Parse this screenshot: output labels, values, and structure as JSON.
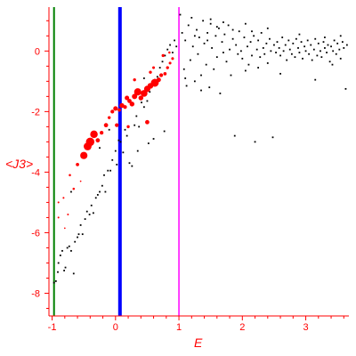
{
  "chart_data": {
    "type": "scatter",
    "title": "",
    "xlabel": "E",
    "ylabel": "<J3>",
    "xlim": [
      -1.05,
      3.68
    ],
    "ylim": [
      -8.75,
      1.45
    ],
    "x_ticks": [
      -1,
      0,
      1,
      2,
      3
    ],
    "x_tick_labels": [
      "-1",
      "0",
      "1",
      "2",
      "3"
    ],
    "y_ticks": [
      0,
      -2,
      -4,
      -6,
      -8
    ],
    "y_tick_labels": [
      "0",
      "-2",
      "-4",
      "-6",
      "-8"
    ],
    "grid": false,
    "legend": "none",
    "colors": {
      "axis": "#ff0000",
      "tick_labels": "#ff0000",
      "small_points": "#000000",
      "large_points": "#ff0000",
      "line_green": "#008000",
      "line_blue": "#0000ff",
      "line_magenta": "#ff00ff"
    },
    "vertical_lines": [
      {
        "x": -0.97,
        "color": "#008000"
      },
      {
        "x": 0.07,
        "color": "#0000ff"
      },
      {
        "x": 1.0,
        "color": "#ff00ff"
      }
    ],
    "series": [
      {
        "marker": "dot",
        "color": "#000000",
        "points": [
          [
            -0.97,
            -7.65
          ],
          [
            -0.94,
            -7.6
          ],
          [
            -0.91,
            -7.3
          ],
          [
            -0.9,
            -7.0
          ],
          [
            -0.87,
            -6.75
          ],
          [
            -0.84,
            -6.6
          ],
          [
            -0.81,
            -7.25
          ],
          [
            -0.79,
            -7.15
          ],
          [
            -0.76,
            -6.5
          ],
          [
            -0.73,
            -6.45
          ],
          [
            -0.7,
            -6.6
          ],
          [
            -0.66,
            -7.35
          ],
          [
            -0.64,
            -6.3
          ],
          [
            -0.6,
            -6.15
          ],
          [
            -0.58,
            -6.05
          ],
          [
            -0.55,
            -5.75
          ],
          [
            -0.52,
            -6.05
          ],
          [
            -0.48,
            -5.55
          ],
          [
            -0.45,
            -5.3
          ],
          [
            -0.41,
            -5.4
          ],
          [
            -0.38,
            -5.1
          ],
          [
            -0.35,
            -5.35
          ],
          [
            -0.31,
            -4.85
          ],
          [
            -0.28,
            -4.75
          ],
          [
            -0.25,
            -4.65
          ],
          [
            -0.21,
            -4.45
          ],
          [
            -0.18,
            -4.1
          ],
          [
            -0.16,
            -4.65
          ],
          [
            -0.12,
            -3.95
          ],
          [
            -0.08,
            -3.95
          ],
          [
            -0.05,
            -3.6
          ],
          [
            0.0,
            -3.3
          ],
          [
            0.02,
            -3.75
          ],
          [
            0.05,
            -2.95
          ],
          [
            0.08,
            -3.0
          ],
          [
            0.12,
            -3.35
          ],
          [
            0.15,
            -2.6
          ],
          [
            0.18,
            -2.8
          ],
          [
            0.22,
            -3.7
          ],
          [
            0.26,
            -3.8
          ],
          [
            0.3,
            -2.45
          ],
          [
            0.33,
            -2.15
          ],
          [
            0.37,
            -2.5
          ],
          [
            0.41,
            -1.7
          ],
          [
            0.45,
            -1.85
          ],
          [
            0.5,
            -1.65
          ],
          [
            0.54,
            -1.35
          ],
          [
            0.58,
            -1.05
          ],
          [
            0.62,
            -0.95
          ],
          [
            0.66,
            -0.85
          ],
          [
            0.7,
            -0.55
          ],
          [
            0.74,
            -0.35
          ],
          [
            0.78,
            -0.15
          ],
          [
            0.82,
            0.05
          ],
          [
            0.86,
            0.2
          ],
          [
            0.9,
            -0.05
          ],
          [
            0.93,
            0.35
          ],
          [
            0.96,
            0.15
          ],
          [
            0.6,
            -2.9
          ],
          [
            0.77,
            -2.65
          ],
          [
            -0.25,
            -3.2
          ],
          [
            -0.1,
            -2.6
          ],
          [
            0.35,
            -3.3
          ],
          [
            0.52,
            -3.05
          ],
          [
            0.45,
            -0.9
          ],
          [
            -0.7,
            -4.65
          ],
          [
            1.02,
            1.2
          ],
          [
            1.05,
            0.6
          ],
          [
            1.08,
            -0.6
          ],
          [
            1.1,
            0.35
          ],
          [
            1.12,
            -1.15
          ],
          [
            1.15,
            0.85
          ],
          [
            1.18,
            -0.3
          ],
          [
            1.2,
            1.1
          ],
          [
            1.22,
            0.15
          ],
          [
            1.25,
            -1.0
          ],
          [
            1.28,
            0.7
          ],
          [
            1.3,
            -0.1
          ],
          [
            1.32,
            0.45
          ],
          [
            1.35,
            -0.8
          ],
          [
            1.38,
            1.0
          ],
          [
            1.4,
            0.25
          ],
          [
            1.43,
            -0.45
          ],
          [
            1.45,
            0.6
          ],
          [
            1.48,
            -1.2
          ],
          [
            1.5,
            0.9
          ],
          [
            1.52,
            0.1
          ],
          [
            1.55,
            -0.6
          ],
          [
            1.58,
            0.5
          ],
          [
            1.6,
            -0.2
          ],
          [
            1.63,
            0.75
          ],
          [
            1.65,
            -1.4
          ],
          [
            1.68,
            0.3
          ],
          [
            1.7,
            -0.05
          ],
          [
            1.72,
            0.55
          ],
          [
            1.75,
            -0.35
          ],
          [
            1.78,
            0.85
          ],
          [
            1.8,
            0.05
          ],
          [
            1.82,
            -0.8
          ],
          [
            1.85,
            0.4
          ],
          [
            1.88,
            -2.8
          ],
          [
            1.9,
            0.2
          ],
          [
            1.93,
            -0.1
          ],
          [
            1.95,
            0.65
          ],
          [
            1.98,
            0.0
          ],
          [
            2.0,
            -0.25
          ],
          [
            2.03,
            0.45
          ],
          [
            2.05,
            -0.65
          ],
          [
            2.08,
            0.15
          ],
          [
            2.1,
            -0.45
          ],
          [
            2.13,
            0.3
          ],
          [
            2.15,
            -0.15
          ],
          [
            2.18,
            0.5
          ],
          [
            2.2,
            -3.0
          ],
          [
            2.23,
            0.05
          ],
          [
            2.25,
            0.35
          ],
          [
            2.28,
            -0.2
          ],
          [
            2.3,
            0.6
          ],
          [
            2.33,
            0.1
          ],
          [
            2.35,
            -0.1
          ],
          [
            2.38,
            0.25
          ],
          [
            2.4,
            -0.4
          ],
          [
            2.43,
            0.4
          ],
          [
            2.45,
            0.0
          ],
          [
            2.48,
            -2.85
          ],
          [
            2.5,
            0.2
          ],
          [
            2.53,
            -0.05
          ],
          [
            2.55,
            0.3
          ],
          [
            2.58,
            0.1
          ],
          [
            2.6,
            -0.15
          ],
          [
            2.63,
            0.45
          ],
          [
            2.65,
            0.0
          ],
          [
            2.68,
            0.2
          ],
          [
            2.7,
            -0.3
          ],
          [
            2.73,
            0.35
          ],
          [
            2.75,
            0.05
          ],
          [
            2.78,
            -0.1
          ],
          [
            2.8,
            0.25
          ],
          [
            2.83,
            -0.2
          ],
          [
            2.85,
            0.4
          ],
          [
            2.88,
            0.1
          ],
          [
            2.9,
            -0.05
          ],
          [
            2.93,
            0.3
          ],
          [
            2.95,
            -0.25
          ],
          [
            2.98,
            0.15
          ],
          [
            3.0,
            0.0
          ],
          [
            3.03,
            0.35
          ],
          [
            3.05,
            -0.1
          ],
          [
            3.08,
            0.2
          ],
          [
            3.1,
            -0.3
          ],
          [
            3.13,
            0.05
          ],
          [
            3.15,
            0.4
          ],
          [
            3.18,
            -0.15
          ],
          [
            3.2,
            0.25
          ],
          [
            3.23,
            0.0
          ],
          [
            3.25,
            -0.2
          ],
          [
            3.28,
            0.3
          ],
          [
            3.3,
            0.1
          ],
          [
            3.33,
            -0.05
          ],
          [
            3.35,
            0.2
          ],
          [
            3.38,
            -0.35
          ],
          [
            3.4,
            0.15
          ],
          [
            3.43,
            0.0
          ],
          [
            3.45,
            0.35
          ],
          [
            3.48,
            -0.1
          ],
          [
            3.5,
            0.25
          ],
          [
            3.53,
            0.05
          ],
          [
            3.55,
            -0.25
          ],
          [
            3.58,
            0.3
          ],
          [
            3.6,
            0.1
          ],
          [
            3.63,
            -1.25
          ],
          [
            3.65,
            0.2
          ],
          [
            2.6,
            -0.75
          ],
          [
            3.15,
            -0.95
          ],
          [
            3.42,
            -0.45
          ],
          [
            2.25,
            -0.55
          ],
          [
            1.5,
            1.05
          ],
          [
            1.7,
            0.95
          ],
          [
            2.05,
            0.9
          ],
          [
            2.4,
            0.75
          ],
          [
            1.25,
            0.5
          ],
          [
            1.45,
            0.35
          ],
          [
            1.6,
            0.8
          ],
          [
            1.85,
            0.7
          ],
          [
            2.15,
            0.65
          ],
          [
            2.9,
            0.55
          ],
          [
            3.3,
            0.45
          ],
          [
            3.55,
            0.5
          ],
          [
            1.1,
            -0.9
          ],
          [
            1.35,
            -1.3
          ]
        ]
      },
      {
        "marker": "circle",
        "color": "#ff0000",
        "points": [
          [
            -0.9,
            -5.5,
            1.2
          ],
          [
            -0.82,
            -4.85,
            1.2
          ],
          [
            -0.72,
            -4.1,
            1.5
          ],
          [
            -0.66,
            -4.55,
            1.5
          ],
          [
            -0.6,
            -3.75,
            2.2
          ],
          [
            -0.5,
            -3.45,
            4.8
          ],
          [
            -0.44,
            -3.15,
            5.2
          ],
          [
            -0.4,
            -3.0,
            5.6
          ],
          [
            -0.34,
            -2.75,
            5.0
          ],
          [
            -0.28,
            -2.95,
            2.8
          ],
          [
            -0.22,
            -2.7,
            2.5
          ],
          [
            -0.15,
            -2.45,
            2.8
          ],
          [
            -0.1,
            -2.2,
            2.0
          ],
          [
            -0.05,
            -2.0,
            2.5
          ],
          [
            0.0,
            -1.9,
            3.0
          ],
          [
            0.02,
            -2.45,
            2.5
          ],
          [
            0.06,
            -1.95,
            2.2
          ],
          [
            0.1,
            -1.8,
            3.2
          ],
          [
            0.15,
            -1.85,
            2.5
          ],
          [
            0.18,
            -1.55,
            3.0
          ],
          [
            0.22,
            -1.65,
            2.8
          ],
          [
            0.26,
            -1.75,
            3.2
          ],
          [
            0.3,
            -1.5,
            3.5
          ],
          [
            0.35,
            -1.35,
            4.8
          ],
          [
            0.4,
            -1.55,
            3.2
          ],
          [
            0.45,
            -1.4,
            4.5
          ],
          [
            0.5,
            -1.25,
            4.2
          ],
          [
            0.55,
            -1.15,
            3.8
          ],
          [
            0.62,
            -1.05,
            5.2
          ],
          [
            0.68,
            -0.95,
            3.0
          ],
          [
            0.72,
            -0.8,
            2.5
          ],
          [
            0.78,
            -0.75,
            2.2
          ],
          [
            0.82,
            -0.55,
            2.0
          ],
          [
            0.86,
            -0.4,
            1.8
          ],
          [
            0.9,
            -0.25,
            1.8
          ],
          [
            0.55,
            -0.7,
            2.0
          ],
          [
            0.6,
            -0.55,
            1.8
          ],
          [
            0.3,
            -0.95,
            2.0
          ],
          [
            0.5,
            -2.35,
            2.8
          ],
          [
            0.2,
            -2.5,
            2.0
          ],
          [
            -0.9,
            -5.0,
            1.2
          ],
          [
            -0.75,
            -5.4,
            1.2
          ],
          [
            -0.8,
            -5.85,
            1.0
          ],
          [
            -0.55,
            -4.3,
            1.0
          ],
          [
            0.75,
            -0.15,
            2.0
          ],
          [
            0.85,
            -0.05,
            1.5
          ]
        ]
      }
    ]
  }
}
